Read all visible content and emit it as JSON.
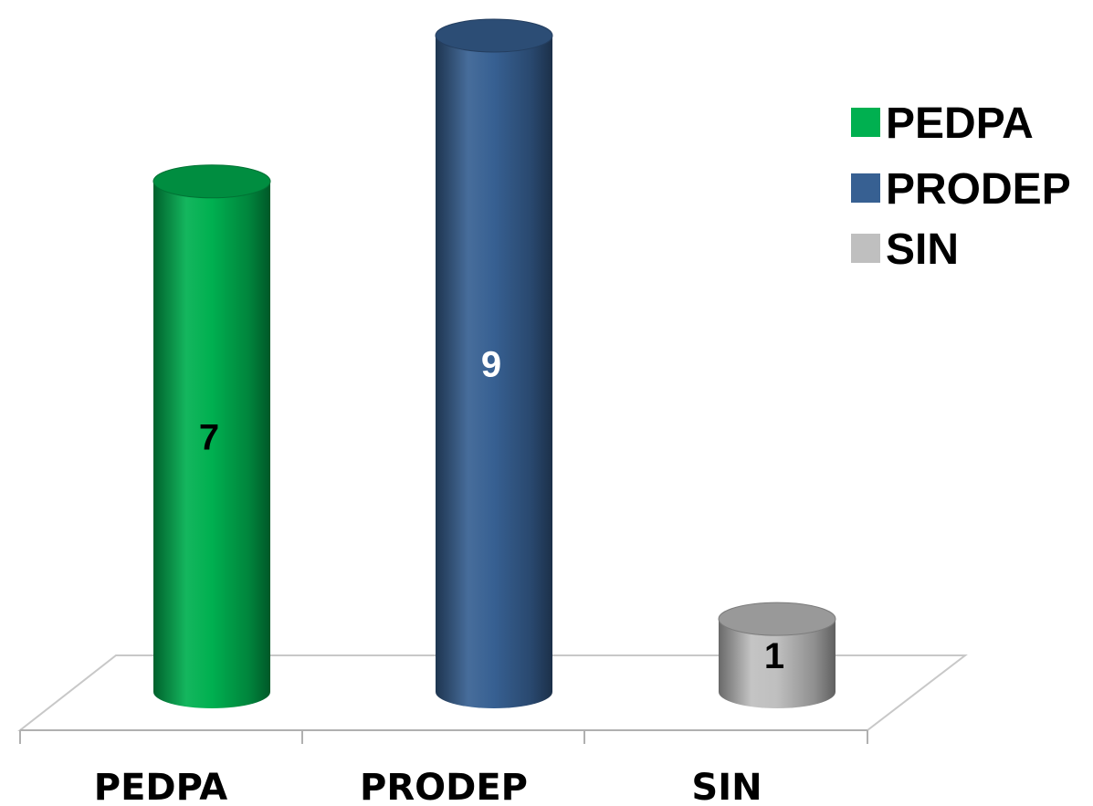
{
  "chart_data": {
    "type": "bar",
    "categories": [
      "PEDPA",
      "PRODEP",
      "SIN"
    ],
    "values": [
      7,
      9,
      1
    ],
    "title": "",
    "xlabel": "",
    "ylabel": "",
    "ylim": [
      0,
      9.3
    ],
    "grid": false,
    "legend": {
      "position": "right",
      "entries": [
        "PEDPA",
        "PRODEP",
        "SIN"
      ]
    },
    "colors": [
      "#00b050",
      "#376092",
      "#bfbfbf"
    ],
    "value_label_colors": [
      "#000000",
      "#ffffff",
      "#000000"
    ],
    "style": "3d-cylinder"
  }
}
